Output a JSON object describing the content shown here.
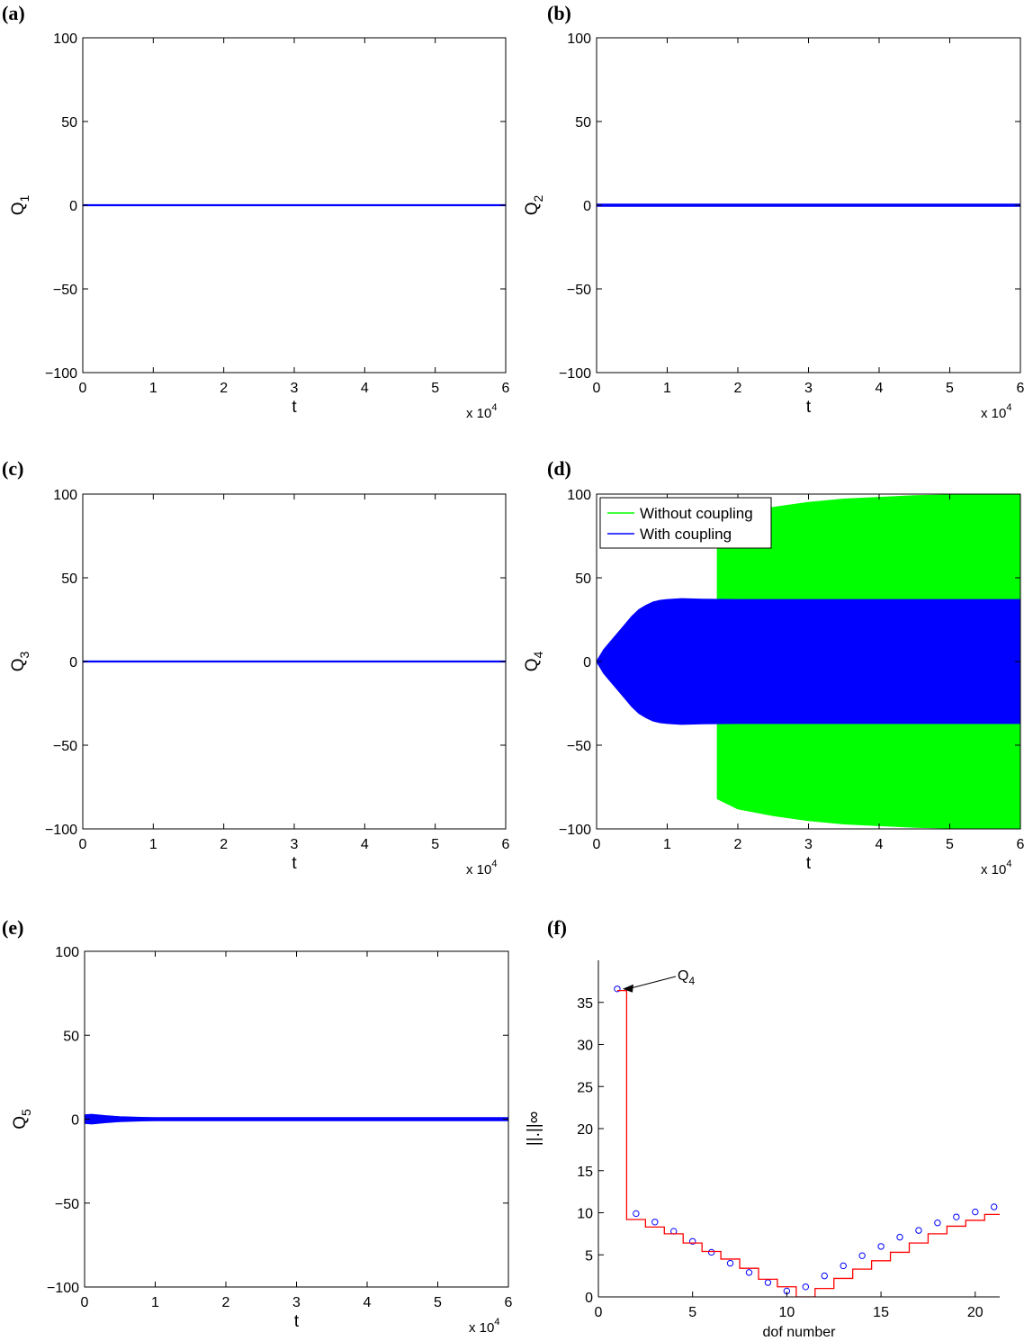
{
  "chart_data": [
    {
      "panel": "(a)",
      "type": "line",
      "xlabel": "t",
      "ylabel": "Q",
      "ylabel_sub": "1",
      "xlim": [
        0,
        6
      ],
      "ylim": [
        -100,
        100
      ],
      "xticks": [
        "0",
        "1",
        "2",
        "3",
        "4",
        "5",
        "6"
      ],
      "yticks": [
        "-100",
        "-50",
        "0",
        "50",
        "100"
      ],
      "x_multiplier": "x 10",
      "x_multiplier_exp": "4",
      "series": [
        {
          "color": "#0000ff",
          "kind": "band",
          "x": [
            0,
            6
          ],
          "amplitude": [
            0.3,
            0.3
          ]
        }
      ]
    },
    {
      "panel": "(b)",
      "type": "line",
      "xlabel": "t",
      "ylabel": "Q",
      "ylabel_sub": "2",
      "xlim": [
        0,
        6
      ],
      "ylim": [
        -100,
        100
      ],
      "xticks": [
        "0",
        "1",
        "2",
        "3",
        "4",
        "5",
        "6"
      ],
      "yticks": [
        "-100",
        "-50",
        "0",
        "50",
        "100"
      ],
      "x_multiplier": "x 10",
      "x_multiplier_exp": "4",
      "series": [
        {
          "color": "#0000ff",
          "kind": "band",
          "x": [
            0,
            6
          ],
          "amplitude": [
            0.6,
            0.6
          ]
        }
      ]
    },
    {
      "panel": "(c)",
      "type": "line",
      "xlabel": "t",
      "ylabel": "Q",
      "ylabel_sub": "3",
      "xlim": [
        0,
        6
      ],
      "ylim": [
        -100,
        100
      ],
      "xticks": [
        "0",
        "1",
        "2",
        "3",
        "4",
        "5",
        "6"
      ],
      "yticks": [
        "-100",
        "-50",
        "0",
        "50",
        "100"
      ],
      "x_multiplier": "x 10",
      "x_multiplier_exp": "4",
      "series": [
        {
          "color": "#0000ff",
          "kind": "band",
          "x": [
            0,
            6
          ],
          "amplitude": [
            0.3,
            0.3
          ]
        }
      ]
    },
    {
      "panel": "(d)",
      "type": "area",
      "xlabel": "t",
      "ylabel": "Q",
      "ylabel_sub": "4",
      "xlim": [
        0,
        6
      ],
      "ylim": [
        -100,
        100
      ],
      "xticks": [
        "0",
        "1",
        "2",
        "3",
        "4",
        "5",
        "6"
      ],
      "yticks": [
        "-100",
        "-50",
        "0",
        "50",
        "100"
      ],
      "x_multiplier": "x 10",
      "x_multiplier_exp": "4",
      "legend": "top-left",
      "series": [
        {
          "name": "Without coupling",
          "color": "#00ff00",
          "kind": "band",
          "x": [
            1.71,
            2.0,
            2.5,
            3.0,
            3.5,
            4.0,
            4.5,
            5.0,
            5.5,
            6.0
          ],
          "amplitude": [
            82,
            88,
            92,
            95,
            97,
            98,
            99,
            99.5,
            100,
            100
          ]
        },
        {
          "name": "With coupling",
          "color": "#0000ff",
          "kind": "band",
          "x": [
            0,
            0.1,
            0.2,
            0.3,
            0.4,
            0.5,
            0.6,
            0.7,
            0.8,
            0.9,
            1.0,
            1.2,
            1.5,
            2.0,
            3.0,
            4.0,
            6.0
          ],
          "amplitude": [
            0,
            7,
            12,
            17,
            22,
            27,
            31,
            33.5,
            35.5,
            36.5,
            37,
            37.5,
            37.2,
            37,
            37,
            37,
            37
          ]
        }
      ]
    },
    {
      "panel": "(e)",
      "type": "line",
      "xlabel": "t",
      "ylabel": "Q",
      "ylabel_sub": "5",
      "xlim": [
        0,
        6
      ],
      "ylim": [
        -100,
        100
      ],
      "xticks": [
        "0",
        "1",
        "2",
        "3",
        "4",
        "5",
        "6"
      ],
      "yticks": [
        "-100",
        "-50",
        "0",
        "50",
        "100"
      ],
      "x_multiplier": "x 10",
      "x_multiplier_exp": "4",
      "series": [
        {
          "color": "#0000ff",
          "kind": "band",
          "x": [
            0,
            0.1,
            0.3,
            0.5,
            0.8,
            1.0,
            6.0
          ],
          "amplitude": [
            2.5,
            2.8,
            2.0,
            1.4,
            1.0,
            0.9,
            0.9
          ]
        }
      ]
    },
    {
      "panel": "(f)",
      "type": "scatter",
      "xlabel": "dof number",
      "ylabel": "||.||∞",
      "xlim": [
        0,
        21.3
      ],
      "ylim": [
        0,
        40
      ],
      "xticks": [
        "0",
        "5",
        "10",
        "15",
        "20"
      ],
      "yticks": [
        "0",
        "5",
        "10",
        "15",
        "20",
        "25",
        "30",
        "35"
      ],
      "annotation": {
        "text": "Q",
        "sub": "4",
        "points_to": [
          1,
          36.6
        ]
      },
      "series": [
        {
          "kind": "markers",
          "color": "#0000ff",
          "x": [
            1,
            2,
            3,
            4,
            5,
            6,
            7,
            8,
            9,
            10,
            11,
            12,
            13,
            14,
            15,
            16,
            17,
            18,
            19,
            20,
            21
          ],
          "y": [
            36.6,
            9.9,
            8.9,
            7.8,
            6.6,
            5.3,
            4.0,
            2.9,
            1.7,
            0.7,
            1.2,
            2.5,
            3.7,
            4.9,
            6.0,
            7.1,
            7.9,
            8.8,
            9.5,
            10.1,
            10.7
          ]
        },
        {
          "kind": "step",
          "color": "#ff0000",
          "x": [
            1,
            2,
            3,
            4,
            5,
            6,
            7,
            8,
            9,
            10,
            11,
            12,
            13,
            14,
            15,
            16,
            17,
            18,
            19,
            20,
            21
          ],
          "y": [
            36.4,
            9.2,
            8.3,
            7.5,
            6.4,
            5.4,
            4.5,
            3.4,
            2.1,
            1.2,
            0.0,
            1.0,
            2.2,
            3.3,
            4.3,
            5.3,
            6.4,
            7.5,
            8.4,
            9.1,
            9.8
          ]
        }
      ]
    }
  ]
}
